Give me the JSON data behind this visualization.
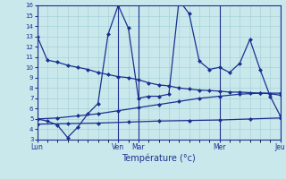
{
  "title": "Température (°c)",
  "x_labels": [
    "Lun",
    "Ven",
    "Mar",
    "Mer",
    "Jeu"
  ],
  "background_color": "#c8e8ec",
  "line_color": "#1a3090",
  "vline_color": "#1a3090",
  "ylim": [
    3,
    16
  ],
  "xlim": [
    0,
    24
  ],
  "yticks": [
    3,
    4,
    5,
    6,
    7,
    8,
    9,
    10,
    11,
    12,
    13,
    14,
    15,
    16
  ],
  "x_tick_pos": [
    0,
    8,
    10,
    18,
    24
  ],
  "vline_pos": [
    8,
    10,
    18,
    24
  ],
  "line1_x": [
    0,
    1,
    2,
    3,
    4,
    5,
    6,
    7,
    8,
    9,
    10,
    11,
    12,
    13,
    14,
    15,
    16,
    17,
    18,
    19,
    20,
    21,
    22,
    23,
    24
  ],
  "line1_y": [
    13,
    10.7,
    10.5,
    10.2,
    10.0,
    9.8,
    9.5,
    9.3,
    9.1,
    9.0,
    8.8,
    8.5,
    8.3,
    8.2,
    8.0,
    7.9,
    7.8,
    7.75,
    7.7,
    7.6,
    7.6,
    7.55,
    7.5,
    7.45,
    7.3
  ],
  "line2_x": [
    0,
    1,
    2,
    3,
    4,
    5,
    6,
    7,
    8,
    9,
    10,
    11,
    12,
    13,
    14,
    15,
    16,
    17,
    18,
    19,
    20,
    21,
    22,
    23,
    24
  ],
  "line2_y": [
    5.0,
    4.8,
    4.4,
    3.2,
    4.2,
    5.5,
    6.5,
    13.2,
    16.0,
    13.8,
    7.0,
    7.2,
    7.2,
    7.4,
    16.5,
    15.2,
    10.6,
    9.8,
    10.0,
    9.5,
    10.4,
    12.7,
    9.8,
    7.2,
    5.3
  ],
  "line3_x": [
    0,
    2,
    4,
    6,
    8,
    10,
    12,
    14,
    16,
    18,
    20,
    22,
    24
  ],
  "line3_y": [
    5.0,
    5.1,
    5.3,
    5.5,
    5.8,
    6.1,
    6.4,
    6.7,
    7.0,
    7.2,
    7.4,
    7.5,
    7.5
  ],
  "line4_x": [
    0,
    3,
    6,
    9,
    12,
    15,
    18,
    21,
    24
  ],
  "line4_y": [
    4.5,
    4.55,
    4.6,
    4.7,
    4.8,
    4.85,
    4.9,
    5.0,
    5.1
  ]
}
